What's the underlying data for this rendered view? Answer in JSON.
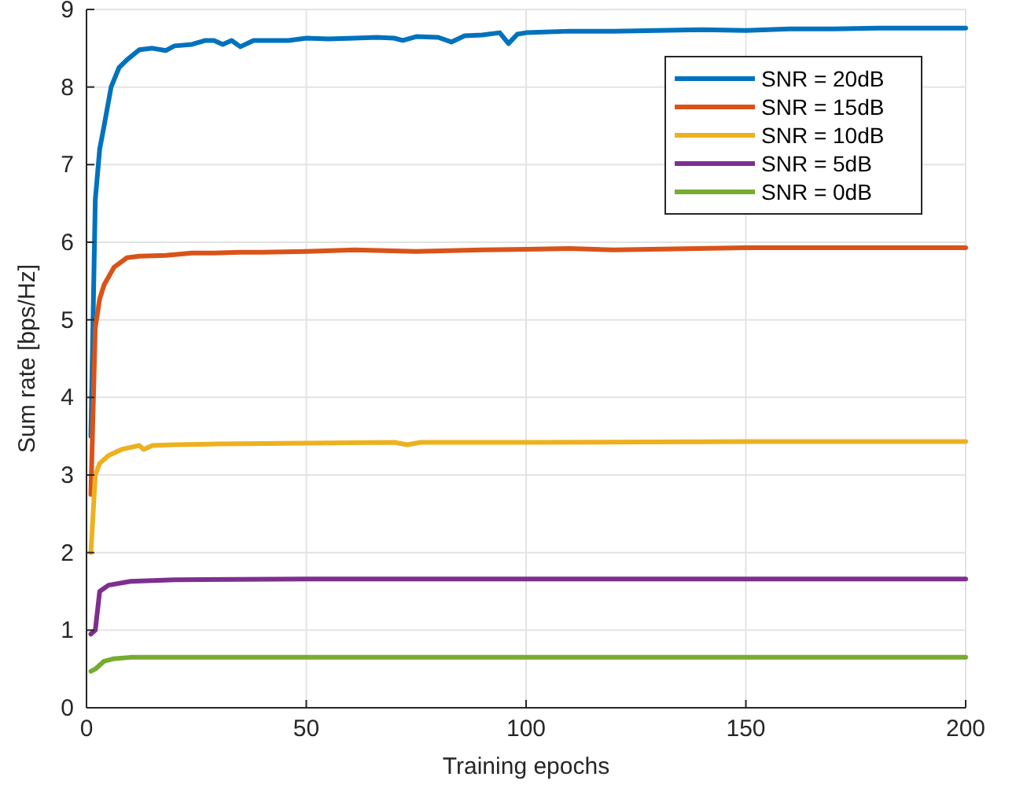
{
  "chart_data": {
    "type": "line",
    "xlabel": "Training epochs",
    "ylabel": "Sum rate [bps/Hz]",
    "xlim": [
      0,
      200
    ],
    "xticks": [
      0,
      50,
      100,
      150,
      200
    ],
    "ylim": [
      0,
      9
    ],
    "yticks": [
      0,
      1,
      2,
      3,
      4,
      5,
      6,
      7,
      8,
      9
    ],
    "grid": true,
    "legend": "top right",
    "line_style": "solid",
    "marker": "none",
    "series": [
      {
        "name": "SNR = 20dB",
        "color": "#0072bd",
        "x": [
          1,
          2,
          3,
          4,
          5.6,
          7.4,
          9.2,
          12,
          15,
          18,
          20,
          24,
          27,
          29,
          31,
          33,
          35,
          38,
          40,
          46,
          50,
          55,
          61,
          66,
          70,
          72,
          75,
          80,
          83,
          86,
          90,
          94,
          96,
          98,
          100,
          110,
          120,
          130,
          140,
          150,
          160,
          170,
          180,
          190,
          200
        ],
        "values": [
          3.5,
          6.55,
          7.2,
          7.5,
          8.0,
          8.25,
          8.35,
          8.48,
          8.5,
          8.47,
          8.53,
          8.55,
          8.6,
          8.6,
          8.55,
          8.6,
          8.52,
          8.6,
          8.6,
          8.6,
          8.63,
          8.62,
          8.63,
          8.64,
          8.63,
          8.6,
          8.65,
          8.64,
          8.58,
          8.66,
          8.67,
          8.7,
          8.56,
          8.68,
          8.7,
          8.72,
          8.72,
          8.73,
          8.74,
          8.73,
          8.75,
          8.75,
          8.76,
          8.76,
          8.76
        ]
      },
      {
        "name": "SNR = 15dB",
        "color": "#d95319",
        "x": [
          1,
          2,
          3,
          4,
          6.3,
          9.2,
          12,
          18,
          24,
          29,
          35,
          40,
          50,
          61,
          75,
          90,
          100,
          110,
          120,
          150,
          175,
          200
        ],
        "values": [
          2.75,
          4.9,
          5.27,
          5.45,
          5.68,
          5.8,
          5.82,
          5.83,
          5.86,
          5.86,
          5.87,
          5.87,
          5.88,
          5.9,
          5.88,
          5.9,
          5.91,
          5.92,
          5.9,
          5.93,
          5.93,
          5.93
        ]
      },
      {
        "name": "SNR = 10dB",
        "color": "#edb120",
        "x": [
          1,
          2,
          3,
          5,
          8,
          12,
          13,
          15,
          20,
          30,
          50,
          70,
          73,
          76,
          100,
          150,
          200
        ],
        "values": [
          2.0,
          3.0,
          3.15,
          3.25,
          3.33,
          3.38,
          3.33,
          3.38,
          3.39,
          3.4,
          3.41,
          3.42,
          3.39,
          3.42,
          3.42,
          3.43,
          3.43
        ]
      },
      {
        "name": "SNR = 5dB",
        "color": "#7e2f8e",
        "x": [
          1,
          2,
          3,
          5,
          10,
          20,
          50,
          100,
          150,
          200
        ],
        "values": [
          0.95,
          1.0,
          1.5,
          1.58,
          1.63,
          1.65,
          1.66,
          1.66,
          1.66,
          1.66
        ]
      },
      {
        "name": "SNR = 0dB",
        "color": "#77ac30",
        "x": [
          1,
          2,
          4,
          6,
          10,
          50,
          100,
          150,
          200
        ],
        "values": [
          0.47,
          0.5,
          0.6,
          0.63,
          0.65,
          0.65,
          0.65,
          0.65,
          0.65
        ]
      }
    ]
  }
}
